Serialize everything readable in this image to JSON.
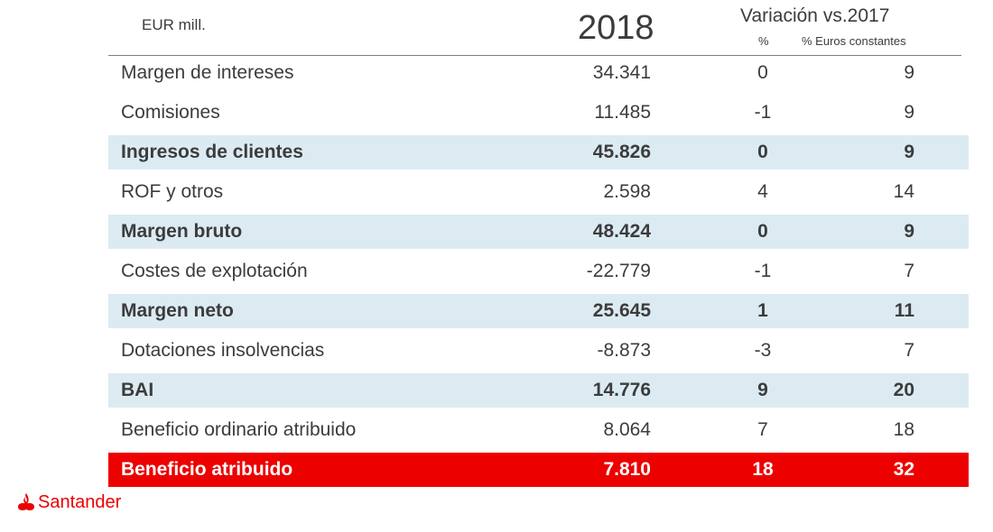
{
  "header": {
    "unit": "EUR mill.",
    "year": "2018",
    "variation_title": "Variación vs.2017",
    "pct_label": "%",
    "const_label": "% Euros constantes"
  },
  "rows": [
    {
      "label": "Margen de intereses",
      "value": "34.341",
      "pct": "0",
      "const": "9",
      "style": "normal"
    },
    {
      "label": "Comisiones",
      "value": "11.485",
      "pct": "-1",
      "const": "9",
      "style": "normal"
    },
    {
      "label": "Ingresos de clientes",
      "value": "45.826",
      "pct": "0",
      "const": "9",
      "style": "highlight"
    },
    {
      "label": "ROF y otros",
      "value": "2.598",
      "pct": "4",
      "const": "14",
      "style": "normal"
    },
    {
      "label": "Margen bruto",
      "value": "48.424",
      "pct": "0",
      "const": "9",
      "style": "highlight"
    },
    {
      "label": "Costes de explotación",
      "value": "-22.779",
      "pct": "-1",
      "const": "7",
      "style": "normal"
    },
    {
      "label": "Margen neto",
      "value": "25.645",
      "pct": "1",
      "const": "11",
      "style": "highlight"
    },
    {
      "label": "Dotaciones insolvencias",
      "value": "-8.873",
      "pct": "-3",
      "const": "7",
      "style": "normal"
    },
    {
      "label": "BAI",
      "value": "14.776",
      "pct": "9",
      "const": "20",
      "style": "highlight"
    },
    {
      "label": "Beneficio ordinario atribuido",
      "value": "8.064",
      "pct": "7",
      "const": "18",
      "style": "normal"
    },
    {
      "label": "Beneficio atribuido",
      "value": "7.810",
      "pct": "18",
      "const": "32",
      "style": "total"
    }
  ],
  "brand": {
    "name": "Santander",
    "icon": "flame-icon",
    "color": "#ec0000",
    "highlight_color": "#dcebf2"
  }
}
